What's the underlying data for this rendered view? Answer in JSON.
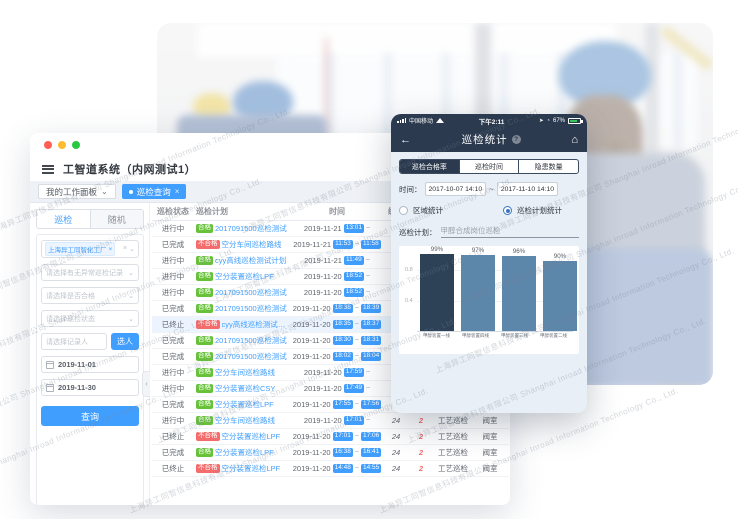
{
  "watermark": {
    "text": "上海异工同智信息科技有限公司 Shanghai Inroad Information Technology Co., Ltd."
  },
  "desktop": {
    "title": "工智道系统（内网测试1）",
    "workspace_tab": "我的工作面板",
    "active_tab": "巡检查询",
    "sidebar": {
      "tab_inspection": "巡检",
      "tab_random": "随机",
      "factory_tag": "上海异工同智化工厂",
      "select_placeholders": [
        "请选择有无异常巡检记录",
        "请选择是否合格",
        "请选择巡检状态"
      ],
      "recorder_placeholder": "请选择记录人",
      "pick_button": "选人",
      "date_start": "2019-11-01",
      "date_end": "2019-11-30",
      "query_button": "查询"
    },
    "table": {
      "headers": [
        "巡检状态",
        "巡检计划",
        "时间",
        "编写",
        "",
        "",
        ""
      ],
      "rows": [
        {
          "status": "进行中",
          "result": "合格",
          "plan": "2017091500巡检测试",
          "date": "2019-11-21",
          "start": "13:01",
          "end": "",
          "missed": "",
          "flag": false,
          "type": "",
          "region": "",
          "highlight": false
        },
        {
          "status": "已完成",
          "result": "不合格",
          "plan": "空分车间巡检路线",
          "date": "2019-11-21",
          "start": "11:53",
          "end": "11:58",
          "missed": "",
          "flag": false,
          "type": "",
          "region": "",
          "highlight": false
        },
        {
          "status": "进行中",
          "result": "合格",
          "plan": "cyy高线巡检测试计划",
          "date": "2019-11-21",
          "start": "11:49",
          "end": "",
          "missed": "",
          "flag": false,
          "type": "",
          "region": "",
          "highlight": false
        },
        {
          "status": "进行中",
          "result": "合格",
          "plan": "空分装置巡检LPF",
          "date": "2019-11-20",
          "start": "18:52",
          "end": "",
          "missed": "",
          "flag": false,
          "type": "",
          "region": "",
          "highlight": false
        },
        {
          "status": "进行中",
          "result": "合格",
          "plan": "2017091500巡检测试",
          "date": "2019-11-20",
          "start": "18:52",
          "end": "",
          "missed": "",
          "flag": false,
          "type": "",
          "region": "",
          "highlight": false
        },
        {
          "status": "已完成",
          "result": "合格",
          "plan": "2017091500巡检测试",
          "date": "2019-11-20",
          "start": "18:38",
          "end": "18:39",
          "missed": "",
          "flag": false,
          "type": "",
          "region": "",
          "highlight": false
        },
        {
          "status": "已终止",
          "result": "不合格",
          "plan": "cyy高线巡检测试计划",
          "date": "2019-11-20",
          "start": "18:35",
          "end": "18:37",
          "missed": "",
          "flag": false,
          "type": "",
          "region": "",
          "highlight": true
        },
        {
          "status": "已完成",
          "result": "合格",
          "plan": "2017091500巡检测试",
          "date": "2019-11-20",
          "start": "18:30",
          "end": "18:31",
          "missed": "",
          "flag": false,
          "type": "",
          "region": "",
          "highlight": false
        },
        {
          "status": "已完成",
          "result": "合格",
          "plan": "2017091500巡检测试",
          "date": "2019-11-20",
          "start": "18:02",
          "end": "18:04",
          "missed": "",
          "flag": false,
          "type": "",
          "region": "",
          "highlight": false
        },
        {
          "status": "进行中",
          "result": "合格",
          "plan": "空分车间巡检路线",
          "date": "2019-11-20",
          "start": "17:59",
          "end": "",
          "missed": "",
          "flag": false,
          "type": "",
          "region": "",
          "highlight": false
        },
        {
          "status": "进行中",
          "result": "合格",
          "plan": "空分装置巡检CSY",
          "date": "2019-11-20",
          "start": "17:49",
          "end": "",
          "missed": "",
          "flag": false,
          "type": "工艺巡检",
          "region": "阀室",
          "highlight": false
        },
        {
          "status": "已完成",
          "result": "合格",
          "plan": "空分装置巡检LPF",
          "date": "2019-11-20",
          "start": "17:55",
          "end": "17:56",
          "missed": "24",
          "flag": true,
          "type": "工艺巡检",
          "region": "气化工段",
          "highlight": false
        },
        {
          "status": "进行中",
          "result": "合格",
          "plan": "空分车间巡检路线",
          "date": "2019-11-20",
          "start": "17:01",
          "end": "",
          "missed": "24",
          "flag": true,
          "type": "工艺巡检",
          "region": "阀室",
          "highlight": false
        },
        {
          "status": "已终止",
          "result": "不合格",
          "plan": "空分装置巡检LPF",
          "date": "2019-11-20",
          "start": "17:01",
          "end": "17:06",
          "missed": "24",
          "flag": true,
          "type": "工艺巡检",
          "region": "阀室",
          "highlight": false
        },
        {
          "status": "已完成",
          "result": "合格",
          "plan": "空分装置巡检LPF",
          "date": "2019-11-20",
          "start": "16:38",
          "end": "16:41",
          "missed": "24",
          "flag": true,
          "type": "工艺巡检",
          "region": "阀室",
          "highlight": false
        },
        {
          "status": "已终止",
          "result": "不合格",
          "plan": "空分装置巡检LPF",
          "date": "2019-11-20",
          "start": "14:48",
          "end": "14:55",
          "missed": "24",
          "flag": true,
          "type": "工艺巡检",
          "region": "阀室",
          "highlight": false
        }
      ]
    }
  },
  "phone": {
    "status_bar": {
      "carrier": "中国移动",
      "time": "下午2:11",
      "battery": "67%"
    },
    "nav": {
      "title": "巡检统计",
      "help_badge": "?"
    },
    "segments": [
      {
        "label": "巡检合格率",
        "active": true
      },
      {
        "label": "巡检时间",
        "active": false
      },
      {
        "label": "隐患数量",
        "active": false
      }
    ],
    "time_label": "时间：",
    "time_from": "2017-10-07 14:10",
    "time_to": "2017-11-10 14:10",
    "radio_area_label": "区域统计",
    "radio_plan_label": "巡检计划统计",
    "plan_label": "巡检计划：",
    "plan_value": "甲醇合成岗位巡检"
  },
  "chart_data": {
    "type": "bar",
    "categories": [
      "甲醇装置一线",
      "甲醇装置四线",
      "甲醇装置三线",
      "甲醇装置二线"
    ],
    "values": [
      0.99,
      0.97,
      0.96,
      0.9
    ],
    "value_labels": [
      "99%",
      "97%",
      "96%",
      "90%"
    ],
    "title": "",
    "xlabel": "",
    "ylabel": "",
    "ylim": [
      0,
      1
    ],
    "yticks": [
      0.4,
      0.8
    ],
    "bar_colors": [
      "#2d4257",
      "#5d86ab",
      "#5d86ab",
      "#5d86ab"
    ],
    "grid": true,
    "legend_position": "none"
  }
}
